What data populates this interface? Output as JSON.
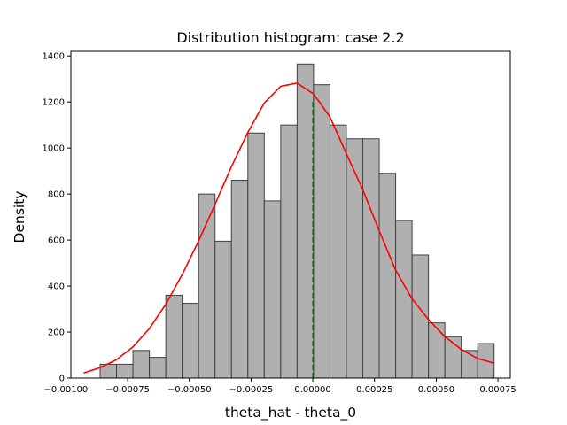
{
  "chart_data": {
    "type": "bar",
    "title": "Distribution histogram: case 2.2",
    "xlabel": "theta_hat - theta_0",
    "ylabel": "Density",
    "xlim": [
      -0.00098,
      0.0008
    ],
    "ylim": [
      0,
      1420
    ],
    "grid": false,
    "x_ticks": [
      {
        "value": -0.001,
        "label": "−0.00100"
      },
      {
        "value": -0.00075,
        "label": "−0.00075"
      },
      {
        "value": -0.0005,
        "label": "−0.00050"
      },
      {
        "value": -0.00025,
        "label": "−0.00025"
      },
      {
        "value": 0,
        "label": "0.00000"
      },
      {
        "value": 0.00025,
        "label": "0.00025"
      },
      {
        "value": 0.0005,
        "label": "0.00050"
      },
      {
        "value": 0.00075,
        "label": "0.00075"
      }
    ],
    "y_ticks": [
      {
        "value": 0,
        "label": "0"
      },
      {
        "value": 200,
        "label": "200"
      },
      {
        "value": 400,
        "label": "400"
      },
      {
        "value": 600,
        "label": "600"
      },
      {
        "value": 800,
        "label": "800"
      },
      {
        "value": 1000,
        "label": "1000"
      },
      {
        "value": 1200,
        "label": "1200"
      },
      {
        "value": 1400,
        "label": "1400"
      }
    ],
    "histogram": {
      "bin_start": -0.000928,
      "bin_width": 6.65e-05,
      "densities": [
        0,
        60,
        60,
        120,
        90,
        360,
        325,
        800,
        595,
        860,
        1065,
        770,
        1100,
        1365,
        1275,
        1100,
        1040,
        1040,
        890,
        685,
        535,
        240,
        180,
        120,
        150
      ],
      "fill_color": "#b0b0b0",
      "edge_color": "#404040"
    },
    "fit_curve": {
      "x": [
        -0.000928,
        -0.000862,
        -0.000795,
        -0.000729,
        -0.000662,
        -0.000596,
        -0.000529,
        -0.000463,
        -0.000396,
        -0.00033,
        -0.000263,
        -0.000197,
        -0.00013,
        -6.35e-05,
        3e-06,
        6.95e-05,
        0.000136,
        0.000202,
        0.000269,
        0.000335,
        0.000402,
        0.000468,
        0.000535,
        0.000601,
        0.000668,
        0.000734
      ],
      "y": [
        22,
        45,
        80,
        135,
        215,
        320,
        450,
        595,
        755,
        918,
        1068,
        1195,
        1268,
        1282,
        1235,
        1135,
        975,
        820,
        640,
        470,
        345,
        255,
        180,
        125,
        85,
        65
      ],
      "color": "#ff0000"
    },
    "reference_line": {
      "x": 0.0,
      "y_top": 1200,
      "color": "#008000",
      "style": "dashed"
    }
  }
}
